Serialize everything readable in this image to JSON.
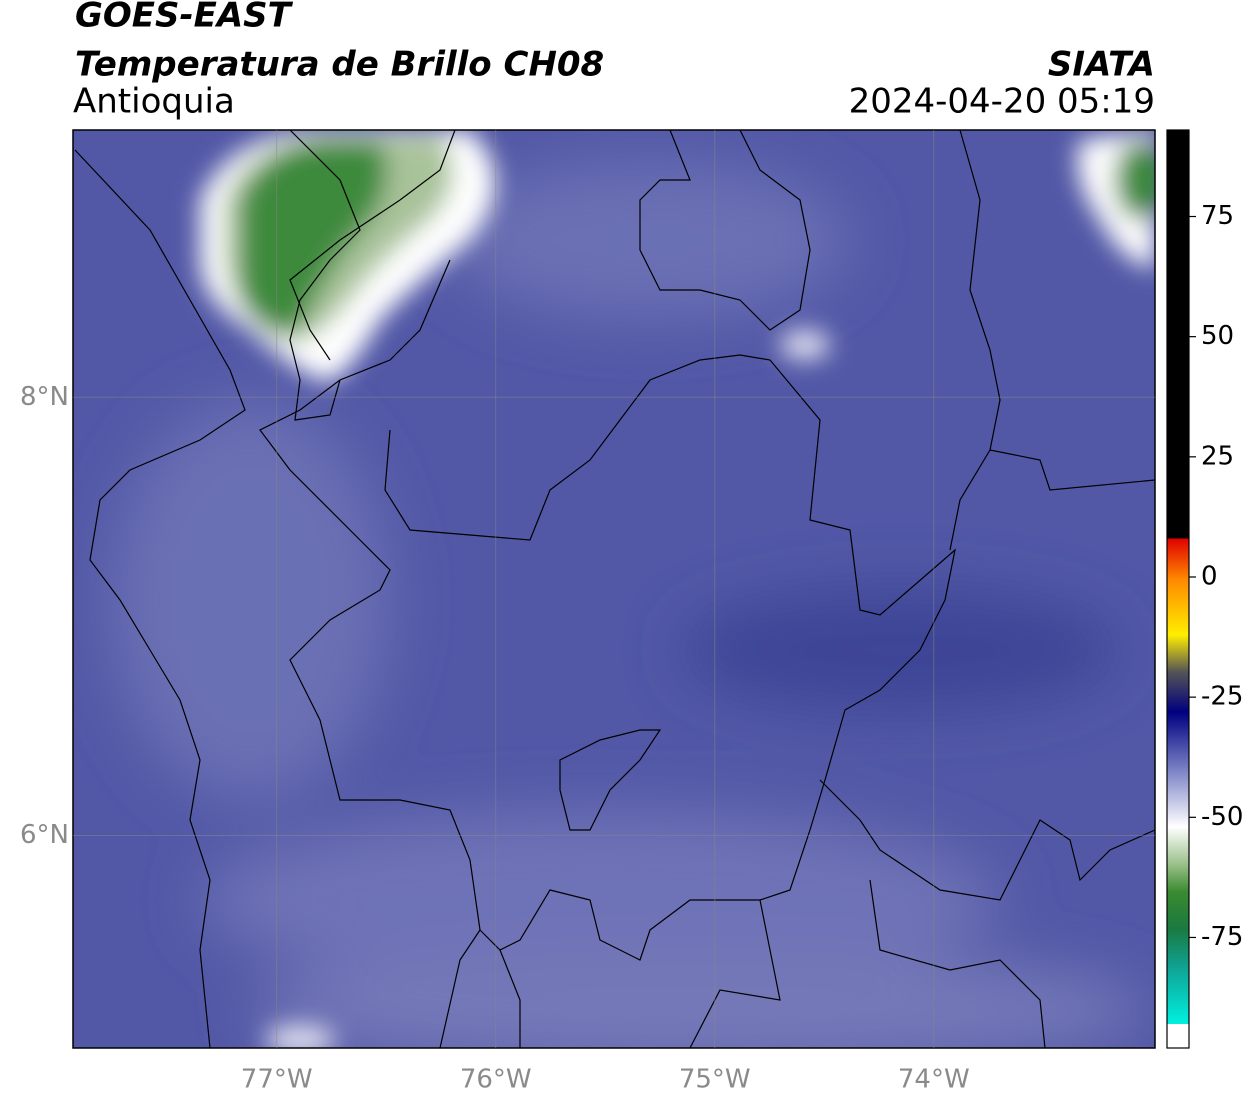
{
  "header": {
    "title": "GOES-EAST",
    "subtitle": "Temperatura de Brillo CH08",
    "region": "Antioquia",
    "source": "SIATA",
    "datetime": "2024-04-20 05:19"
  },
  "map": {
    "xlim": [
      -77.93,
      -72.99
    ],
    "ylim": [
      5.03,
      9.22
    ],
    "xticks": [
      {
        "value": -77,
        "label": "77°W"
      },
      {
        "value": -76,
        "label": "76°W"
      },
      {
        "value": -75,
        "label": "75°W"
      },
      {
        "value": -74,
        "label": "74°W"
      }
    ],
    "yticks": [
      {
        "value": 8,
        "label": "8°N"
      },
      {
        "value": 6,
        "label": "6°N"
      }
    ]
  },
  "colorbar": {
    "lim": [
      -98,
      93
    ],
    "ticks": [
      -75,
      -50,
      -25,
      0,
      25,
      50,
      75
    ]
  }
}
